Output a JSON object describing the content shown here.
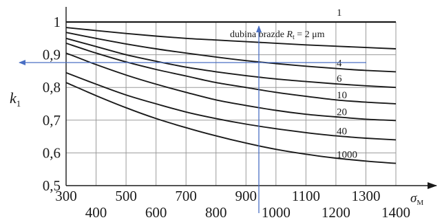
{
  "chart_data": {
    "type": "line",
    "title": "",
    "xlabel": "σM",
    "ylabel": "k1",
    "xlim": [
      300,
      1400
    ],
    "ylim": [
      0.5,
      1.0
    ],
    "grid": true,
    "x_ticks_upper": [
      "300",
      "500",
      "700",
      "900",
      "1100",
      "1300"
    ],
    "x_ticks_lower": [
      "400",
      "600",
      "800",
      "1000",
      "1200",
      "1400"
    ],
    "y_ticks": [
      "1",
      "0,9",
      "0,8",
      "0,7",
      "0,6",
      "0,5"
    ],
    "annotation": "dubina brazde R = 2 μm",
    "annotation_subscript": "t",
    "line_color": "#1a1a1a",
    "arrow_color": "#4a6fc4",
    "x": [
      300,
      400,
      500,
      600,
      700,
      800,
      900,
      1000,
      1100,
      1200,
      1300,
      1400
    ],
    "series": [
      {
        "name": "1",
        "values": [
          1.0,
          1.0,
          1.0,
          1.0,
          1.0,
          1.0,
          1.0,
          1.0,
          1.0,
          1.0,
          1.0,
          1.0
        ]
      },
      {
        "name": "2",
        "values": [
          0.983,
          0.974,
          0.965,
          0.957,
          0.95,
          0.945,
          0.94,
          0.935,
          0.93,
          0.926,
          0.922,
          0.918
        ]
      },
      {
        "name": "4",
        "values": [
          0.968,
          0.95,
          0.933,
          0.918,
          0.905,
          0.893,
          0.882,
          0.873,
          0.865,
          0.858,
          0.852,
          0.848
        ]
      },
      {
        "name": "6",
        "values": [
          0.95,
          0.925,
          0.9,
          0.88,
          0.862,
          0.848,
          0.836,
          0.826,
          0.818,
          0.811,
          0.805,
          0.8
        ]
      },
      {
        "name": "10",
        "values": [
          0.935,
          0.905,
          0.878,
          0.855,
          0.835,
          0.815,
          0.8,
          0.785,
          0.773,
          0.762,
          0.755,
          0.75
        ]
      },
      {
        "name": "20",
        "values": [
          0.905,
          0.87,
          0.838,
          0.81,
          0.785,
          0.762,
          0.745,
          0.73,
          0.718,
          0.71,
          0.703,
          0.699
        ]
      },
      {
        "name": "40",
        "values": [
          0.845,
          0.81,
          0.777,
          0.75,
          0.725,
          0.705,
          0.688,
          0.674,
          0.662,
          0.652,
          0.645,
          0.64
        ]
      },
      {
        "name": "1000",
        "values": [
          0.815,
          0.775,
          0.738,
          0.705,
          0.677,
          0.652,
          0.63,
          0.611,
          0.596,
          0.584,
          0.575,
          0.568
        ]
      }
    ]
  }
}
